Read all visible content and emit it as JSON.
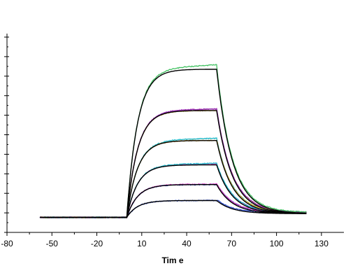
{
  "chart_data": {
    "type": "line",
    "title": "",
    "xlabel": "Tim e",
    "ylabel": "",
    "xlim": [
      -80,
      145
    ],
    "ylim": [
      -0.8,
      9.8
    ],
    "x_ticks": [
      -80,
      -50,
      -20,
      10,
      40,
      70,
      100,
      130
    ],
    "y_tick_count": 11,
    "y_minor_count": 10,
    "grid": false,
    "legend": "none",
    "association_start": 0,
    "dissociation_start": 60,
    "end": 120,
    "baseline_start": -58,
    "association_rate": 0.14,
    "dissociation_rate": 0.095,
    "plateaus": [
      0.9,
      1.75,
      2.8,
      4.1,
      5.7,
      7.9
    ],
    "residual": 0.2,
    "fit_color": "#000000",
    "series": [
      {
        "color": "#3050d0",
        "values": [
          0.9,
          1.75
        ]
      },
      {
        "color": "#d040c0",
        "values": [
          1.75,
          2.8,
          5.7
        ]
      },
      {
        "color": "#20b8c8",
        "values": [
          2.8,
          4.1
        ]
      },
      {
        "color": "#e0b030",
        "values": [
          4.1,
          5.7
        ]
      },
      {
        "color": "#9030b0",
        "values": [
          5.7
        ]
      },
      {
        "color": "#40c060",
        "values": [
          7.9
        ]
      }
    ]
  }
}
